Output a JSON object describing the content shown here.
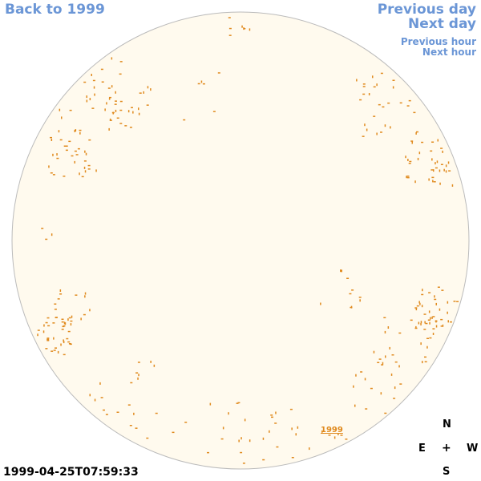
{
  "nav": {
    "back_label": "Back to 1999",
    "prev_day_label": "Previous day",
    "next_day_label": "Next day",
    "prev_hour_label": "Previous hour",
    "next_hour_label": "Next hour"
  },
  "timestamp": "1999-04-25T07:59:33",
  "year_link": "1999",
  "compass": {
    "n": "N",
    "s": "S",
    "e": "E",
    "w": "W",
    "center": "+"
  },
  "colors": {
    "disk_fill": "#fffaee",
    "disk_stroke": "#bbbbbb",
    "feature": "#e08a1e",
    "link": "#6b96d6"
  }
}
